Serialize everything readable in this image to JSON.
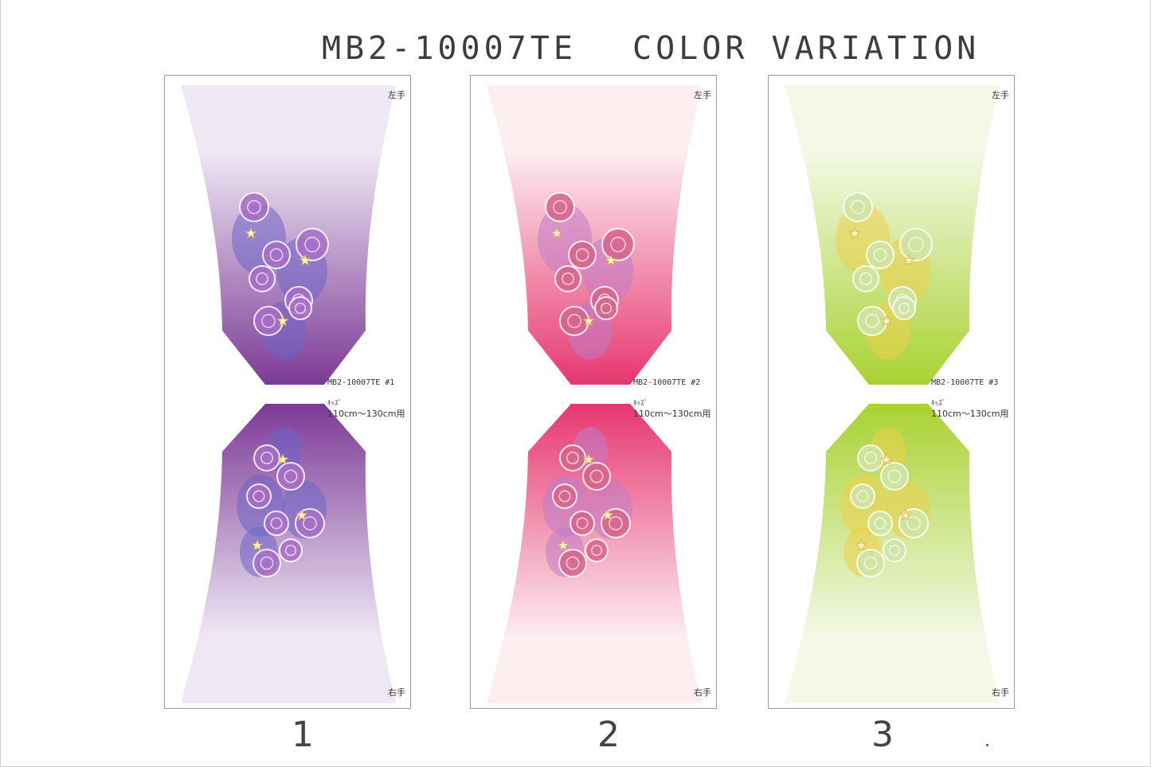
{
  "title": {
    "code": "MB2-10007TE",
    "caption": "COLOR VARIATION"
  },
  "variations": [
    {
      "number": "1",
      "label_top": "左手",
      "label_bottom": "右手",
      "code": "MB2-10007TE  #1",
      "size_line1": "ｷｯｽﾞ",
      "size_line2": "110cm〜130cm用",
      "colors": {
        "light": "#efe8f4",
        "dark": "#7c3a96",
        "flower": "#a96ec7",
        "cluster": "#6d64c8"
      }
    },
    {
      "number": "2",
      "label_top": "左手",
      "label_bottom": "右手",
      "code": "MB2-10007TE  #2",
      "size_line1": "ｷｯｽﾞ",
      "size_line2": "110cm〜130cm用",
      "colors": {
        "light": "#fdeef0",
        "dark": "#e6376f",
        "flower": "#d8648a",
        "cluster": "#c07cc8"
      }
    },
    {
      "number": "3",
      "label_top": "左手",
      "label_bottom": "右手",
      "code": "MB2-10007TE  #3",
      "size_line1": "ｷｯｽﾞ",
      "size_line2": "110cm〜130cm用",
      "colors": {
        "light": "#f3f9e6",
        "dark": "#a9d232",
        "flower": "#cfe6a8",
        "cluster": "#eed04a"
      }
    }
  ]
}
